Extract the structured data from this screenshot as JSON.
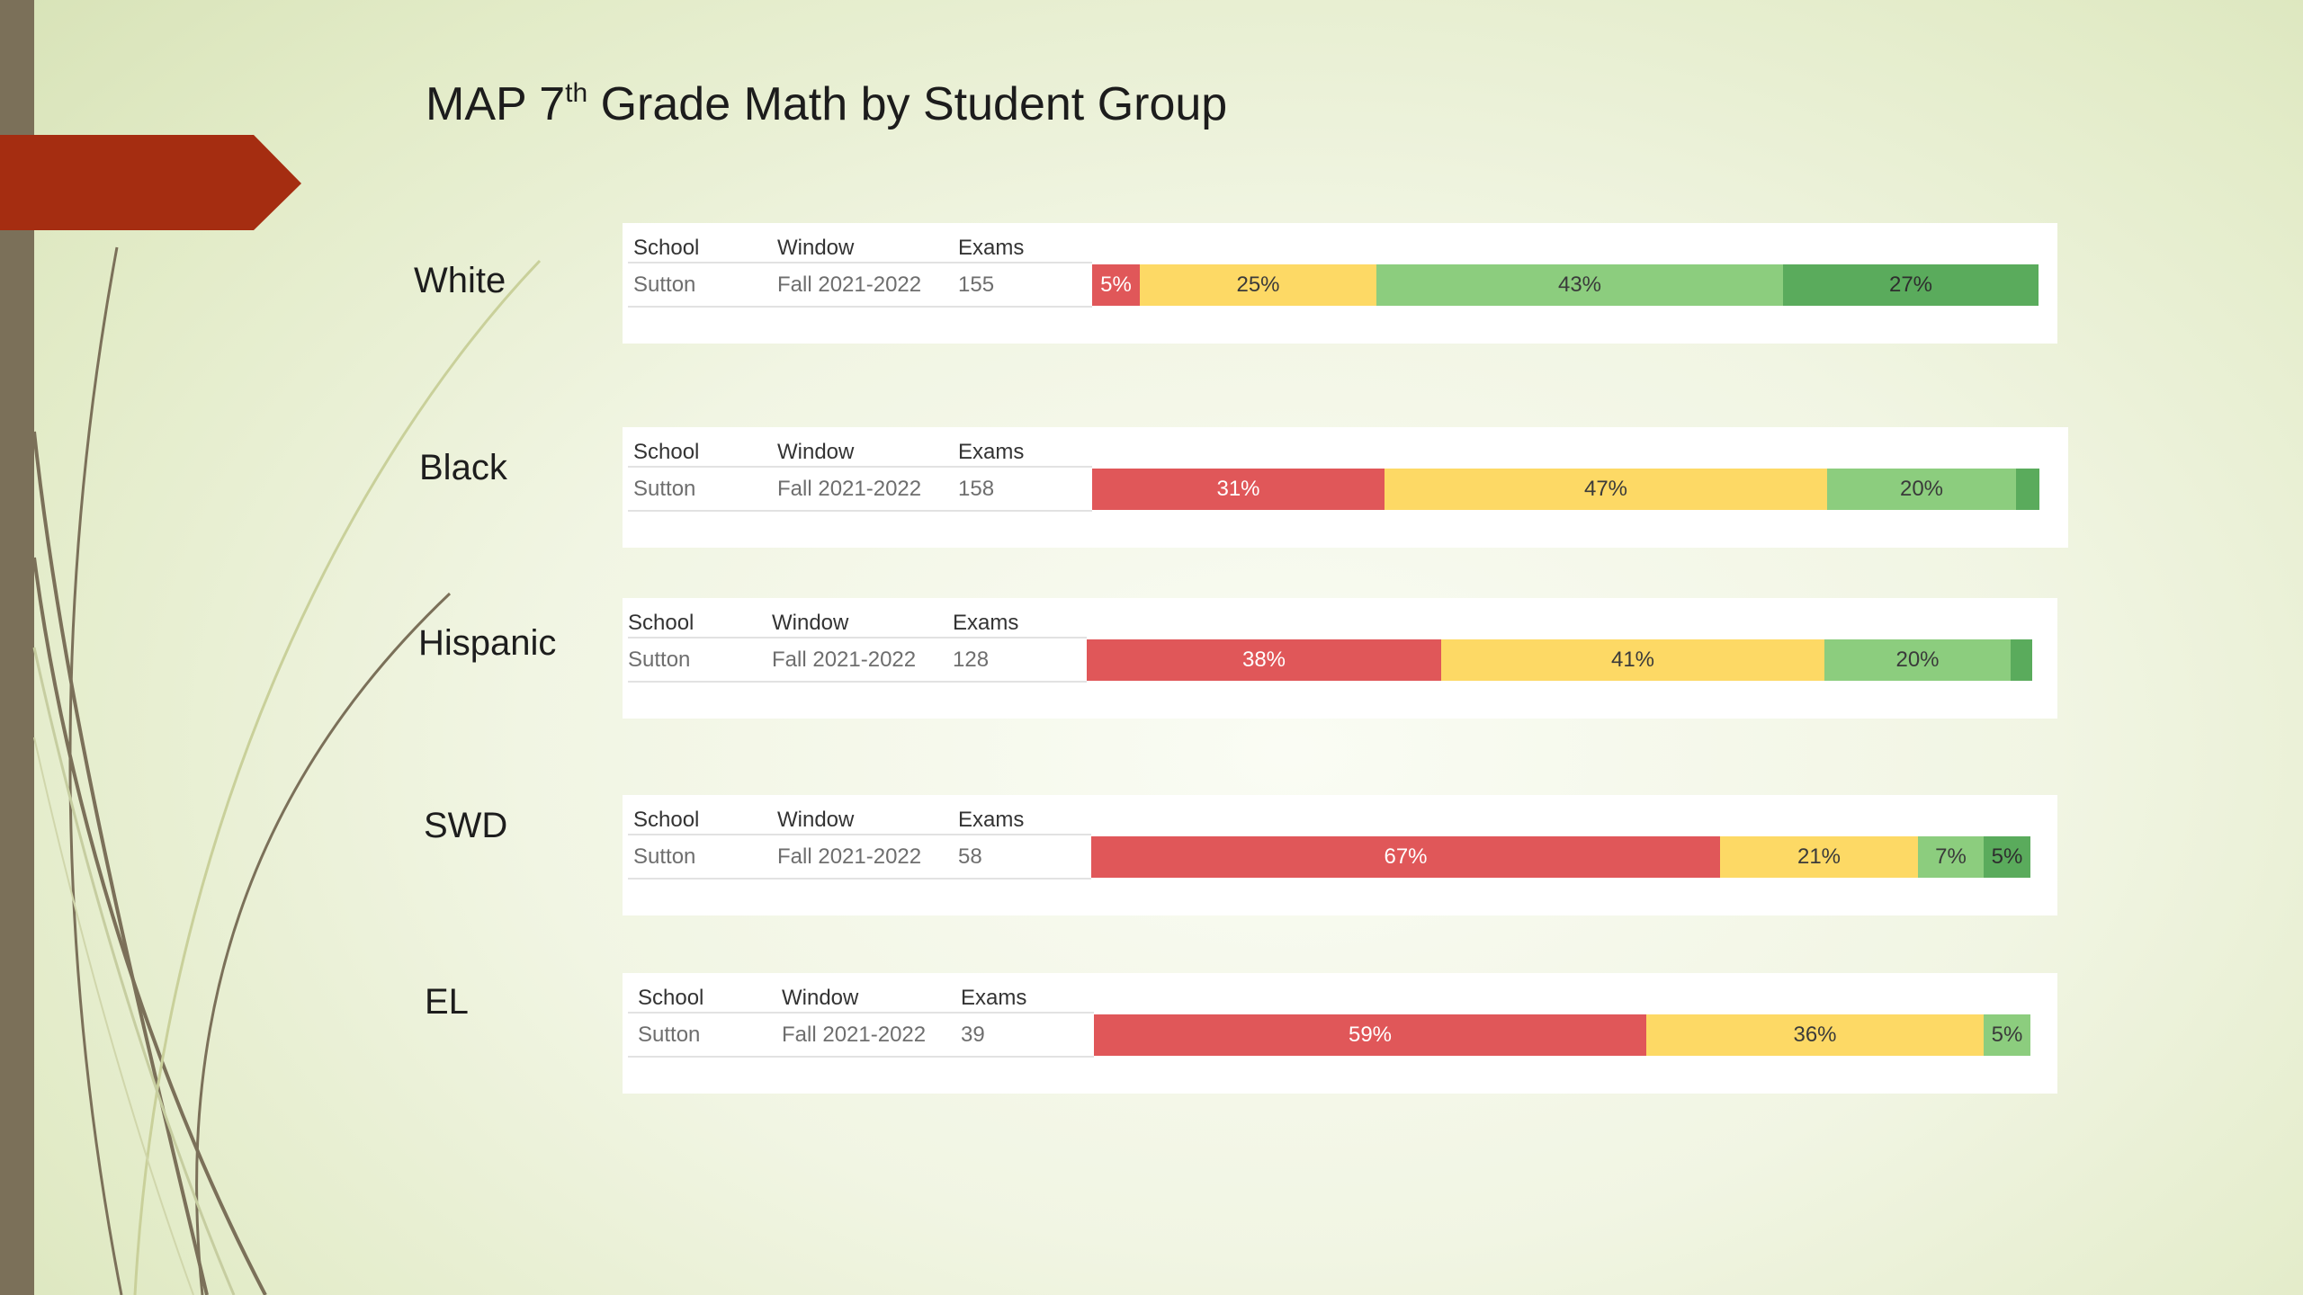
{
  "slide": {
    "title_main": "MAP 7",
    "title_sup": "th",
    "title_rest": " Grade Math by Student Group"
  },
  "table_headers": {
    "school": "School",
    "window": "Window",
    "exams": "Exams"
  },
  "colors": {
    "background": "#f3f6e6",
    "left_bar": "#7b7059",
    "accent_arrow": "#a52d11",
    "level_1": "#e05759",
    "level_2": "#fdd965",
    "level_3": "#8ccd7e",
    "level_4": "#5aab5c"
  },
  "chart_data": {
    "type": "bar",
    "orientation": "horizontal",
    "stacked": true,
    "normalized_percent": true,
    "title": "MAP 7th Grade Math by Student Group",
    "xlim": [
      0,
      100
    ],
    "categories": [
      "White",
      "Black",
      "Hispanic",
      "SWD",
      "EL"
    ],
    "series_labels_shown": false,
    "rows": [
      {
        "group": "White",
        "school": "Sutton",
        "window": "Fall 2021-2022",
        "exams": "155",
        "segments": [
          {
            "value": 5,
            "label": "5%"
          },
          {
            "value": 25,
            "label": "25%"
          },
          {
            "value": 43,
            "label": "43%"
          },
          {
            "value": 27,
            "label": "27%"
          }
        ]
      },
      {
        "group": "Black",
        "school": "Sutton",
        "window": "Fall 2021-2022",
        "exams": "158",
        "segments": [
          {
            "value": 31,
            "label": "31%"
          },
          {
            "value": 47,
            "label": "47%"
          },
          {
            "value": 20,
            "label": "20%"
          },
          {
            "value": 2.5,
            "label": ""
          }
        ]
      },
      {
        "group": "Hispanic",
        "school": "Sutton",
        "window": "Fall 2021-2022",
        "exams": "128",
        "segments": [
          {
            "value": 38,
            "label": "38%"
          },
          {
            "value": 41,
            "label": "41%"
          },
          {
            "value": 20,
            "label": "20%"
          },
          {
            "value": 2.3,
            "label": ""
          }
        ]
      },
      {
        "group": "SWD",
        "school": "Sutton",
        "window": "Fall 2021-2022",
        "exams": "58",
        "segments": [
          {
            "value": 67,
            "label": "67%"
          },
          {
            "value": 21,
            "label": "21%"
          },
          {
            "value": 7,
            "label": "7%"
          },
          {
            "value": 5,
            "label": "5%"
          }
        ]
      },
      {
        "group": "EL",
        "school": "Sutton",
        "window": "Fall 2021-2022",
        "exams": "39",
        "segments": [
          {
            "value": 59,
            "label": "59%"
          },
          {
            "value": 36,
            "label": "36%"
          },
          {
            "value": 5,
            "label": "5%"
          }
        ]
      }
    ]
  }
}
